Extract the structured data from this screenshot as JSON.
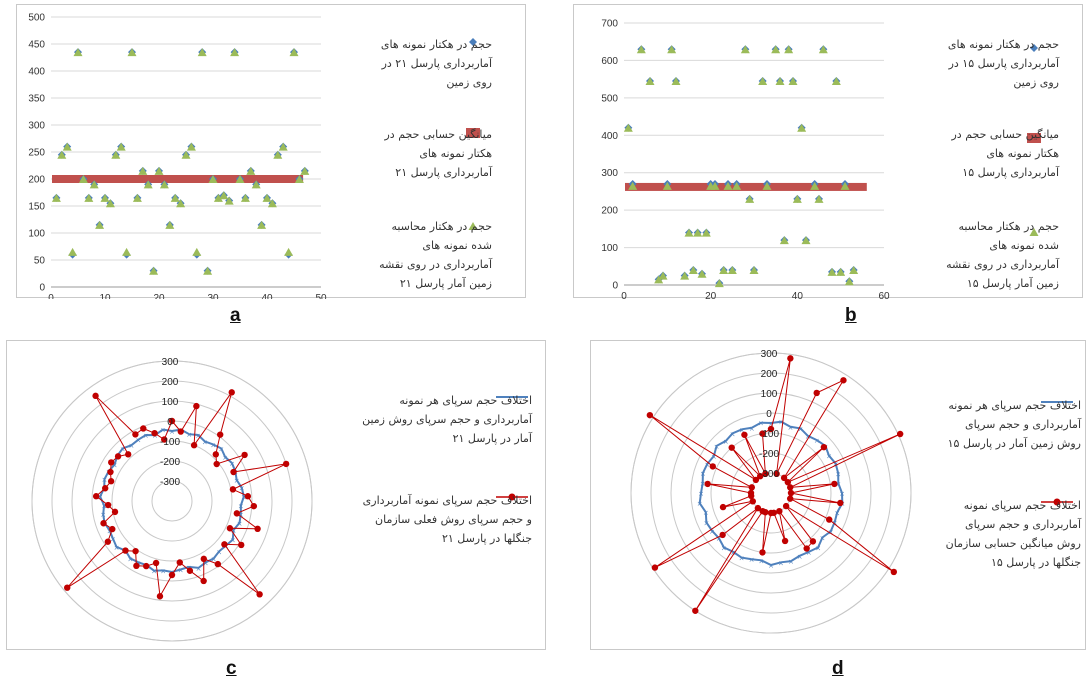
{
  "colors": {
    "blue": "#4a7ebb",
    "green": "#9bbb59",
    "red": "#c0504d",
    "radar_red": "#c00000",
    "radar_blue": "#4f81bd"
  },
  "captions": {
    "a": "a",
    "b": "b",
    "c": "c",
    "d": "d"
  },
  "legend_a": {
    "item1": "حجم در هکتار نمونه های آماربرداری پارسل ۲۱ در روی زمین",
    "item2": "میانگین حسابی حجم در هکتار نمونه های آماربرداری پارسل ۲۱",
    "item3": "حجم در هکتار محاسبه شده نمونه های آماربرداری در روی نقشه زمین آمار پارسل ۲۱"
  },
  "legend_b": {
    "item1": "حجم در هکتار نمونه های آماربرداری پارسل ۱۵ در روی زمین",
    "item2": "میانگین حسابی حجم در هکتار نمونه های آماربرداری پارسل ۱۵",
    "item3": "حجم در هکتار محاسبه شده نمونه های آماربرداری در روی نقشه زمین آمار پارسل ۱۵"
  },
  "legend_c": {
    "item1": "اختلاف حجم سرپای هر نمونه آماربرداری و حجم سرپای روش زمین آمار در پارسل ۲۱",
    "item2": "اختلاف حجم سرپای نمونه آماربرداری و حجم سرپای روش فعلی سازمان جنگلها در پارسل ۲۱"
  },
  "legend_d": {
    "item1": "اختلاف حجم سرپای هر نمونه آماربرداری و حجم سرپای روش زمین آمار در پارسل ۱۵",
    "item2": "اختلاف حجم سرپای نمونه آماربرداری و حجم سرپای روش میانگین حسابی سازمان جنگلها در پارسل ۱۵"
  },
  "chart_data": [
    {
      "panel": "a",
      "type": "scatter",
      "xlim": [
        0,
        50
      ],
      "ylim": [
        0,
        500
      ],
      "xticks": [
        "0",
        "10",
        "20",
        "30",
        "40",
        "50"
      ],
      "yticks": [
        "0",
        "50",
        "100",
        "150",
        "200",
        "250",
        "300",
        "350",
        "400",
        "450",
        "500"
      ],
      "grid": true,
      "legend": "right",
      "mean_line": 200,
      "ground_x": [
        1,
        2,
        3,
        4,
        5,
        6,
        7,
        8,
        9,
        10,
        11,
        12,
        13,
        14,
        15,
        16,
        17,
        18,
        19,
        20,
        21,
        22,
        23,
        24,
        25,
        26,
        27,
        28,
        29,
        30,
        31,
        32,
        33,
        34,
        35,
        36,
        37,
        38,
        39,
        40,
        41,
        42,
        43,
        44,
        45,
        46,
        47
      ],
      "ground_y": [
        165,
        245,
        260,
        60,
        435,
        200,
        165,
        190,
        115,
        165,
        155,
        245,
        260,
        60,
        435,
        165,
        215,
        190,
        30,
        215,
        190,
        115,
        165,
        155,
        245,
        260,
        60,
        435,
        30,
        200,
        165,
        170,
        160,
        435,
        200,
        165,
        215,
        190,
        115,
        165,
        155,
        245,
        260,
        60,
        435,
        200,
        215
      ],
      "model_x": [
        1,
        2,
        3,
        4,
        5,
        6,
        7,
        8,
        9,
        10,
        11,
        12,
        13,
        14,
        15,
        16,
        17,
        18,
        19,
        20,
        21,
        22,
        23,
        24,
        25,
        26,
        27,
        28,
        29,
        30,
        31,
        32,
        33,
        34,
        35,
        36,
        37,
        38,
        39,
        40,
        41,
        42,
        43,
        44,
        45,
        46,
        47
      ],
      "model_y": [
        165,
        245,
        260,
        65,
        435,
        200,
        165,
        190,
        115,
        165,
        155,
        245,
        260,
        65,
        435,
        165,
        215,
        190,
        30,
        215,
        190,
        115,
        165,
        155,
        245,
        260,
        65,
        435,
        30,
        200,
        165,
        170,
        160,
        435,
        200,
        165,
        215,
        190,
        115,
        165,
        155,
        245,
        260,
        65,
        435,
        200,
        215
      ]
    },
    {
      "panel": "b",
      "type": "scatter",
      "xlim": [
        0,
        60
      ],
      "ylim": [
        0,
        700
      ],
      "xticks": [
        "0",
        "20",
        "40",
        "60"
      ],
      "yticks": [
        "0",
        "100",
        "200",
        "300",
        "400",
        "500",
        "600",
        "700"
      ],
      "grid": true,
      "legend": "right",
      "mean_line": 262,
      "ground_x": [
        1,
        2,
        4,
        6,
        8,
        9,
        10,
        11,
        12,
        14,
        15,
        16,
        17,
        18,
        19,
        20,
        21,
        22,
        23,
        24,
        25,
        26,
        28,
        29,
        30,
        32,
        33,
        35,
        36,
        37,
        38,
        39,
        40,
        41,
        42,
        44,
        45,
        46,
        48,
        49,
        50,
        51,
        52,
        53
      ],
      "ground_y": [
        420,
        270,
        630,
        545,
        15,
        25,
        270,
        630,
        545,
        25,
        140,
        40,
        140,
        30,
        140,
        270,
        270,
        5,
        40,
        270,
        40,
        270,
        630,
        230,
        40,
        545,
        270,
        630,
        545,
        120,
        630,
        545,
        230,
        420,
        120,
        270,
        230,
        630,
        35,
        545,
        35,
        270,
        10,
        40
      ],
      "model_x": [
        1,
        2,
        4,
        6,
        8,
        9,
        10,
        11,
        12,
        14,
        15,
        16,
        17,
        18,
        19,
        20,
        21,
        22,
        23,
        24,
        25,
        26,
        28,
        29,
        30,
        32,
        33,
        35,
        36,
        37,
        38,
        39,
        40,
        41,
        42,
        44,
        45,
        46,
        48,
        49,
        50,
        51,
        52,
        53
      ],
      "model_y": [
        420,
        265,
        630,
        545,
        15,
        25,
        265,
        630,
        545,
        25,
        140,
        40,
        140,
        30,
        140,
        265,
        265,
        5,
        40,
        265,
        40,
        265,
        630,
        230,
        40,
        545,
        265,
        630,
        545,
        120,
        630,
        545,
        230,
        420,
        120,
        265,
        230,
        630,
        35,
        545,
        35,
        265,
        10,
        40
      ]
    },
    {
      "panel": "c",
      "type": "radar",
      "rlim": [
        -400,
        300
      ],
      "ticks": [
        "300",
        "200",
        "100",
        "0",
        "-100",
        "-200",
        "-300"
      ],
      "legend": "right",
      "geostat": [
        -50,
        -40,
        -55,
        -45,
        -60,
        -50,
        -40,
        -55,
        -45,
        -50,
        -60,
        -45,
        -40,
        -55,
        -50,
        -45,
        -60,
        -40,
        -50,
        -55,
        -45,
        -50,
        -40,
        -60,
        -55,
        -45,
        -50,
        -40,
        -55,
        -50,
        -45,
        -60,
        -40,
        -50,
        -55,
        -45,
        -50,
        -60,
        -40,
        -55,
        -45,
        -50,
        -60,
        -45,
        -40,
        -55,
        -50,
        -45,
        -60,
        -40
      ],
      "current": [
        0,
        -50,
        90,
        -100,
        220,
        10,
        -80,
        -110,
        30,
        -60,
        200,
        -90,
        -20,
        10,
        -70,
        50,
        -80,
        10,
        -60,
        240,
        -10,
        -70,
        30,
        -40,
        -90,
        -30,
        80,
        -80,
        -50,
        -30,
        -90,
        -60,
        280,
        -20,
        -70,
        -40,
        -110,
        -80,
        -20,
        -60,
        -80,
        -60,
        -40,
        -50,
        -80,
        250,
        -20,
        -10,
        -50,
        -90
      ]
    },
    {
      "panel": "d",
      "type": "radar",
      "rlim": [
        -400,
        300
      ],
      "ticks": [
        "300",
        "200",
        "100",
        "0",
        "-100",
        "-200",
        "-300"
      ],
      "legend": "right",
      "geostat": [
        -50,
        -40,
        -55,
        -45,
        -60,
        -50,
        -40,
        -55,
        -45,
        -50,
        -60,
        -45,
        -40,
        -55,
        -50,
        -45,
        -60,
        -40,
        -50,
        -55,
        -45,
        -50,
        -40,
        -60,
        -55,
        -45,
        -50,
        -40,
        -55,
        -50,
        -45,
        -60,
        -40,
        -50,
        -55,
        -45,
        -50,
        -60,
        -40,
        -55,
        -45,
        -50,
        -60,
        -45
      ],
      "mean": [
        -80,
        280,
        -300,
        150,
        270,
        -300,
        -50,
        -300,
        310,
        -300,
        -80,
        -300,
        -50,
        -300,
        -80,
        330,
        -300,
        -80,
        -70,
        -300,
        -150,
        -300,
        -300,
        -100,
        -300,
        -300,
        300,
        -300,
        -80,
        290,
        -300,
        -150,
        -300,
        -300,
        -80,
        -300,
        -80,
        320,
        -300,
        -100,
        -300,
        -80,
        -300,
        -100
      ]
    }
  ]
}
